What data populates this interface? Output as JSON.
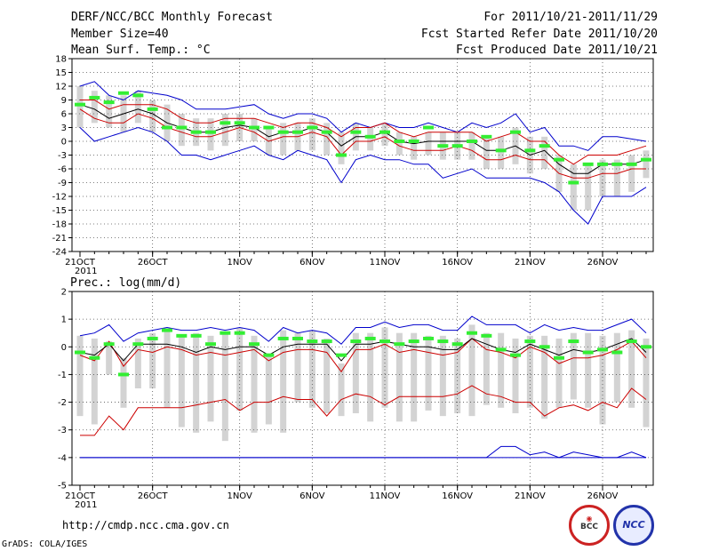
{
  "header": {
    "title": "DERF/NCC/BCC Monthly Forecast",
    "member_size": "Member Size=40",
    "variable": "Mean Surf. Temp.: °C",
    "for_range": "For 2011/10/21-2011/11/29",
    "fcst_started": "Fcst Started Refer Date 2011/10/20",
    "fcst_produced": "Fcst Produced Date 2011/10/21"
  },
  "footer": {
    "url": "http://cmdp.ncc.cma.gov.cn",
    "credit": "GrADS: COLA/IGES",
    "bcc_logo": "BCC",
    "ncc_logo": "NCC"
  },
  "colors": {
    "ensemble_mean": "#000000",
    "spread_lines": "#cc0000",
    "extreme_lines": "#0000cc",
    "box": "#d3d3d3",
    "observed": "#33ee33",
    "grid": "#555555"
  },
  "chart_data": [
    {
      "type": "line",
      "title": "Mean Surf. Temp.: °C",
      "panel": "temperature",
      "x_days": 39,
      "x_tick_labels": [
        "21OCT",
        "26OCT",
        "1NOV",
        "6NOV",
        "11NOV",
        "16NOV",
        "21NOV",
        "26NOV"
      ],
      "x_tick_days": [
        0,
        5,
        11,
        16,
        21,
        26,
        31,
        36
      ],
      "x_year_label": "2011",
      "ylim": [
        -24,
        18
      ],
      "y_ticks": [
        -24,
        -21,
        -18,
        -15,
        -12,
        -9,
        -6,
        -3,
        0,
        3,
        6,
        9,
        12,
        15,
        18
      ],
      "series": [
        {
          "name": "max",
          "color": "#0000cc",
          "values": [
            12,
            13,
            10,
            9,
            11,
            10.5,
            10,
            9,
            7,
            7,
            7,
            7.5,
            8,
            6,
            5,
            6,
            6,
            5,
            2,
            4,
            3,
            4,
            3,
            3,
            4,
            3,
            2,
            4,
            3,
            4,
            6,
            2,
            3,
            -1,
            -1,
            -2,
            1,
            1,
            0.5,
            0
          ]
        },
        {
          "name": "upper",
          "color": "#cc0000",
          "values": [
            9,
            9,
            7,
            8,
            8,
            8,
            7,
            5,
            4,
            4,
            5,
            5,
            5,
            4,
            3,
            4,
            4,
            3,
            1,
            3,
            3,
            4,
            2,
            1,
            2,
            2,
            2,
            2,
            0,
            1,
            2,
            0,
            0,
            -3,
            -5,
            -3,
            -3,
            -3,
            -2,
            -1
          ]
        },
        {
          "name": "mean",
          "color": "#000000",
          "values": [
            8,
            7,
            5,
            6,
            7,
            6,
            4,
            3,
            2,
            2,
            3,
            3.5,
            3,
            1,
            2,
            2,
            3,
            2,
            -1,
            1,
            1,
            2,
            0,
            -0.5,
            0,
            0,
            0,
            0,
            -2,
            -2,
            -1,
            -3,
            -2,
            -5,
            -7,
            -7,
            -5,
            -5,
            -5,
            -4
          ]
        },
        {
          "name": "lower",
          "color": "#cc0000",
          "values": [
            7,
            5,
            4,
            4,
            6,
            5,
            3,
            2,
            1,
            1,
            2,
            3,
            2,
            0,
            1,
            1,
            2,
            1,
            -3,
            0,
            0,
            1,
            -1,
            -2,
            -2,
            -2,
            -1,
            -2,
            -4,
            -4,
            -3,
            -4,
            -4,
            -7,
            -8,
            -8,
            -7,
            -7,
            -6,
            -6
          ]
        },
        {
          "name": "min",
          "color": "#0000cc",
          "values": [
            3,
            0,
            1,
            2,
            3,
            2,
            0,
            -3,
            -3,
            -4,
            -3,
            -2,
            -1,
            -3,
            -4,
            -2,
            -3,
            -4,
            -9,
            -4,
            -3,
            -4,
            -4,
            -5,
            -5,
            -8,
            -7,
            -6,
            -8,
            -8,
            -8,
            -8,
            -9,
            -11,
            -15,
            -18,
            -12,
            -12,
            -12,
            -10
          ]
        }
      ],
      "boxes": [
        [
          3,
          12
        ],
        [
          4,
          11
        ],
        [
          3,
          10
        ],
        [
          2,
          10
        ],
        [
          4,
          11
        ],
        [
          2,
          9
        ],
        [
          0,
          8
        ],
        [
          -1,
          6
        ],
        [
          -1,
          5
        ],
        [
          -2,
          5
        ],
        [
          -1,
          6
        ],
        [
          0,
          6
        ],
        [
          0,
          5
        ],
        [
          -3,
          3
        ],
        [
          -3,
          4
        ],
        [
          -2,
          4
        ],
        [
          -2,
          5
        ],
        [
          -3,
          4
        ],
        [
          -5,
          2
        ],
        [
          -2,
          4
        ],
        [
          -2,
          3
        ],
        [
          -1,
          4
        ],
        [
          -3,
          2
        ],
        [
          -4,
          1
        ],
        [
          -3,
          2
        ],
        [
          -4,
          2
        ],
        [
          -4,
          2
        ],
        [
          -4,
          2
        ],
        [
          -6,
          1
        ],
        [
          -6,
          1
        ],
        [
          -5,
          3
        ],
        [
          -7,
          1
        ],
        [
          -6,
          1
        ],
        [
          -11,
          -3
        ],
        [
          -15,
          -5
        ],
        [
          -15,
          -5
        ],
        [
          -12,
          -4
        ],
        [
          -12,
          -4
        ],
        [
          -11,
          -3
        ],
        [
          -8,
          -2
        ]
      ],
      "observed": [
        8,
        9.5,
        8.5,
        10.5,
        10,
        7,
        3,
        3,
        2,
        2,
        4,
        4,
        3,
        3,
        2,
        2,
        3,
        2,
        -3,
        2,
        1,
        2,
        0,
        0,
        3,
        -1,
        -1,
        0,
        1,
        -2,
        2,
        -2,
        -1,
        -4,
        -9,
        -5,
        -5,
        -5,
        -5,
        -4
      ]
    },
    {
      "type": "line",
      "title": "Prec.: log(mm/d)",
      "panel": "precipitation",
      "x_days": 39,
      "x_tick_labels": [
        "21OCT",
        "26OCT",
        "1NOV",
        "6NOV",
        "11NOV",
        "16NOV",
        "21NOV",
        "26NOV"
      ],
      "x_tick_days": [
        0,
        5,
        11,
        16,
        21,
        26,
        31,
        36
      ],
      "x_year_label": "2011",
      "ylim": [
        -5,
        2
      ],
      "y_ticks": [
        -5,
        -4,
        -3,
        -2,
        -1,
        0,
        1,
        2
      ],
      "series": [
        {
          "name": "max",
          "color": "#0000cc",
          "values": [
            0.4,
            0.5,
            0.8,
            0.2,
            0.5,
            0.6,
            0.7,
            0.6,
            0.6,
            0.7,
            0.6,
            0.7,
            0.6,
            0.2,
            0.7,
            0.5,
            0.6,
            0.5,
            0.1,
            0.7,
            0.7,
            0.9,
            0.7,
            0.8,
            0.8,
            0.6,
            0.6,
            1.1,
            0.8,
            0.8,
            0.8,
            0.5,
            0.8,
            0.6,
            0.7,
            0.6,
            0.6,
            0.8,
            1.0,
            0.5
          ]
        },
        {
          "name": "upper",
          "color": "#cc0000",
          "values": [
            -0.3,
            -0.5,
            0.2,
            -0.7,
            -0.1,
            -0.2,
            0.0,
            -0.1,
            -0.3,
            -0.2,
            -0.3,
            -0.2,
            -0.1,
            -0.5,
            -0.2,
            -0.1,
            -0.1,
            -0.2,
            -0.9,
            -0.1,
            -0.1,
            0.1,
            -0.2,
            -0.1,
            -0.2,
            -0.3,
            -0.2,
            0.3,
            -0.1,
            -0.2,
            -0.4,
            0.0,
            -0.2,
            -0.6,
            -0.4,
            -0.4,
            -0.3,
            -0.1,
            0.2,
            -0.4
          ]
        },
        {
          "name": "mean",
          "color": "#000000",
          "values": [
            -0.2,
            -0.3,
            0.1,
            -0.5,
            0.1,
            0.1,
            0.1,
            0.0,
            -0.2,
            0.0,
            -0.1,
            0.0,
            0.0,
            -0.3,
            0.0,
            0.1,
            0.1,
            0.1,
            -0.5,
            0.1,
            0.1,
            0.2,
            0.1,
            0.0,
            0.0,
            -0.1,
            -0.1,
            0.3,
            0.1,
            -0.1,
            -0.2,
            0.1,
            -0.1,
            -0.3,
            -0.1,
            -0.2,
            -0.1,
            0.1,
            0.3,
            -0.2
          ]
        },
        {
          "name": "lower",
          "color": "#cc0000",
          "values": [
            -3.2,
            -3.2,
            -2.5,
            -3.0,
            -2.2,
            -2.2,
            -2.2,
            -2.2,
            -2.1,
            -2.0,
            -1.9,
            -2.3,
            -2.0,
            -2.0,
            -1.8,
            -1.9,
            -1.9,
            -2.5,
            -1.9,
            -1.7,
            -1.8,
            -2.1,
            -1.8,
            -1.8,
            -1.8,
            -1.8,
            -1.7,
            -1.4,
            -1.7,
            -1.8,
            -2.0,
            -2.0,
            -2.5,
            -2.2,
            -2.1,
            -2.3,
            -2.0,
            -2.2,
            -1.5,
            -1.9
          ]
        },
        {
          "name": "min",
          "color": "#0000cc",
          "values": [
            -4,
            -4,
            -4,
            -4,
            -4,
            -4,
            -4,
            -4,
            -4,
            -4,
            -4,
            -4,
            -4,
            -4,
            -4,
            -4,
            -4,
            -4,
            -4,
            -4,
            -4,
            -4,
            -4,
            -4,
            -4,
            -4,
            -4,
            -4,
            -4,
            -3.6,
            -3.6,
            -3.9,
            -3.8,
            -4,
            -3.8,
            -3.9,
            -4,
            -4,
            -3.8,
            -4
          ]
        },
        {
          "name": "floor",
          "color": "#0000cc",
          "values": [
            -4,
            -4,
            -4,
            -4,
            -4,
            -4,
            -4,
            -4,
            -4,
            -4,
            -4,
            -4,
            -4,
            -4,
            -4,
            -4,
            -4,
            -4,
            -4,
            -4,
            -4,
            -4,
            -4,
            -4,
            -4,
            -4,
            -4,
            -4,
            -4,
            -4,
            -4,
            -4,
            -4,
            -4,
            -4,
            -4,
            -4,
            -4,
            -4,
            -4
          ]
        }
      ],
      "boxes": [
        [
          -2.5,
          0.4
        ],
        [
          -2.8,
          0.3
        ],
        [
          -1.0,
          0.2
        ],
        [
          -2.2,
          -0.4
        ],
        [
          -1.5,
          0.3
        ],
        [
          -1.5,
          0.5
        ],
        [
          -2.2,
          0.6
        ],
        [
          -2.9,
          0.4
        ],
        [
          -3.1,
          0.5
        ],
        [
          -2.7,
          0.4
        ],
        [
          -3.4,
          0.5
        ],
        [
          -2.3,
          0.7
        ],
        [
          -3.1,
          0.4
        ],
        [
          -2.8,
          -0.3
        ],
        [
          -3.1,
          0.6
        ],
        [
          -2.0,
          0.5
        ],
        [
          -2.2,
          0.6
        ],
        [
          -2.4,
          0.3
        ],
        [
          -2.5,
          -0.6
        ],
        [
          -2.4,
          0.5
        ],
        [
          -2.7,
          0.5
        ],
        [
          -2.2,
          0.7
        ],
        [
          -2.7,
          0.5
        ],
        [
          -2.7,
          0.5
        ],
        [
          -2.3,
          0.4
        ],
        [
          -2.5,
          0.4
        ],
        [
          -2.4,
          0.3
        ],
        [
          -2.5,
          0.8
        ],
        [
          -2.1,
          0.5
        ],
        [
          -2.2,
          0.5
        ],
        [
          -2.4,
          0.3
        ],
        [
          -2.2,
          0.4
        ],
        [
          -2.6,
          0.4
        ],
        [
          -2.2,
          0.3
        ],
        [
          -1.9,
          0.5
        ],
        [
          -2.2,
          0.5
        ],
        [
          -2.8,
          0.4
        ],
        [
          -2.0,
          0.5
        ],
        [
          -2.2,
          0.6
        ],
        [
          -2.9,
          0.3
        ]
      ],
      "observed": [
        -0.2,
        -0.4,
        0.1,
        -1.0,
        0.1,
        0.3,
        0.6,
        0.4,
        0.4,
        0.1,
        0.5,
        0.5,
        0.1,
        -0.3,
        0.3,
        0.3,
        0.2,
        0.2,
        -0.3,
        0.2,
        0.3,
        0.2,
        0.1,
        0.2,
        0.3,
        0.2,
        0.1,
        0.5,
        0.4,
        -0.1,
        -0.3,
        0.2,
        0.0,
        -0.4,
        0.2,
        -0.2,
        -0.1,
        -0.2,
        0.2,
        0.0
      ]
    }
  ]
}
